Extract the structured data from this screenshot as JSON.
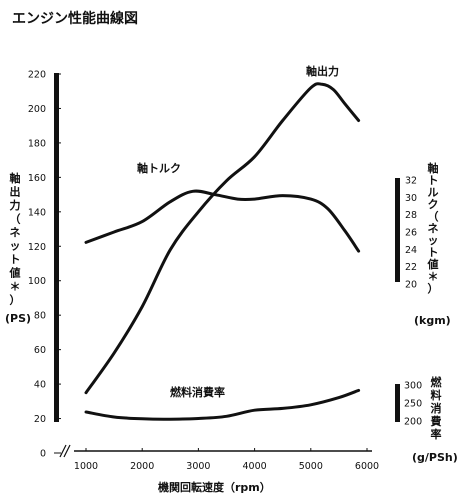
{
  "chart_data": {
    "type": "line",
    "title": "エンジン性能曲線図",
    "xlabel": "機関回転速度（rpm）",
    "x_ticks": [
      1000,
      2000,
      3000,
      4000,
      5000,
      6000
    ],
    "xlim": [
      1000,
      6000
    ],
    "axes": {
      "left": {
        "label": [
          "軸",
          "出",
          "力",
          "（",
          "ネ",
          "ッ",
          "ト",
          "値",
          "＊",
          "）"
        ],
        "unit": "(PS)",
        "ticks": [
          0,
          20,
          40,
          60,
          80,
          100,
          120,
          140,
          160,
          180,
          200,
          220
        ],
        "range": [
          0,
          220
        ]
      },
      "right_torque": {
        "label": [
          "軸",
          "ト",
          "ル",
          "ク",
          "（",
          "ネ",
          "ッ",
          "ト",
          "値",
          "＊",
          "）"
        ],
        "unit": "(kgm)",
        "ticks": [
          20,
          22,
          24,
          26,
          28,
          30,
          32
        ],
        "range": [
          20,
          32
        ]
      },
      "right_fuel": {
        "label": [
          "燃",
          "料",
          "消",
          "費",
          "率"
        ],
        "unit": "(g/PSh)",
        "ticks": [
          200,
          250,
          300
        ],
        "range": [
          200,
          300
        ]
      }
    },
    "series": [
      {
        "name": "軸出力",
        "axis": "left",
        "x": [
          1000,
          1500,
          2000,
          2500,
          3000,
          3500,
          4000,
          4500,
          5000,
          5200,
          5400,
          5600,
          5850
        ],
        "y": [
          35,
          58,
          85,
          118,
          140,
          158,
          172,
          193,
          212,
          214,
          211,
          203,
          193
        ]
      },
      {
        "name": "軸トルク",
        "axis": "right_torque",
        "x": [
          1000,
          1500,
          2000,
          2500,
          2900,
          3300,
          3700,
          4000,
          4500,
          5000,
          5300,
          5600,
          5850
        ],
        "y": [
          24.8,
          26.0,
          27.2,
          29.5,
          30.7,
          30.3,
          29.8,
          29.8,
          30.2,
          29.8,
          28.7,
          26.2,
          23.8
        ]
      },
      {
        "name": "燃料消費率",
        "axis": "right_fuel",
        "x": [
          1000,
          1500,
          2000,
          2500,
          3000,
          3500,
          4000,
          4500,
          5000,
          5500,
          5850
        ],
        "y": [
          225,
          211,
          206,
          205,
          207,
          213,
          230,
          235,
          245,
          265,
          285
        ]
      }
    ]
  }
}
